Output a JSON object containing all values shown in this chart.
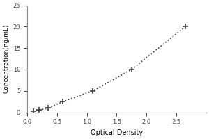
{
  "x_data": [
    0.1,
    0.2,
    0.35,
    0.6,
    1.1,
    1.75,
    2.65
  ],
  "y_data": [
    0.3,
    0.5,
    1.0,
    2.5,
    5.0,
    10.0,
    20.0
  ],
  "line_color": "#404040",
  "marker_style": "+",
  "marker_color": "#404040",
  "linestyle": "dotted",
  "xlabel": "Optical Density",
  "ylabel": "Concentration(ng/mL)",
  "xlim": [
    0,
    3
  ],
  "ylim": [
    0,
    25
  ],
  "xticks": [
    0,
    0.5,
    1.0,
    1.5,
    2.0,
    2.5
  ],
  "yticks": [
    0,
    5,
    10,
    15,
    20,
    25
  ],
  "background_color": "#ffffff",
  "marker_size": 6,
  "linewidth": 1.2,
  "xlabel_fontsize": 7,
  "ylabel_fontsize": 6.5,
  "tick_fontsize": 6
}
